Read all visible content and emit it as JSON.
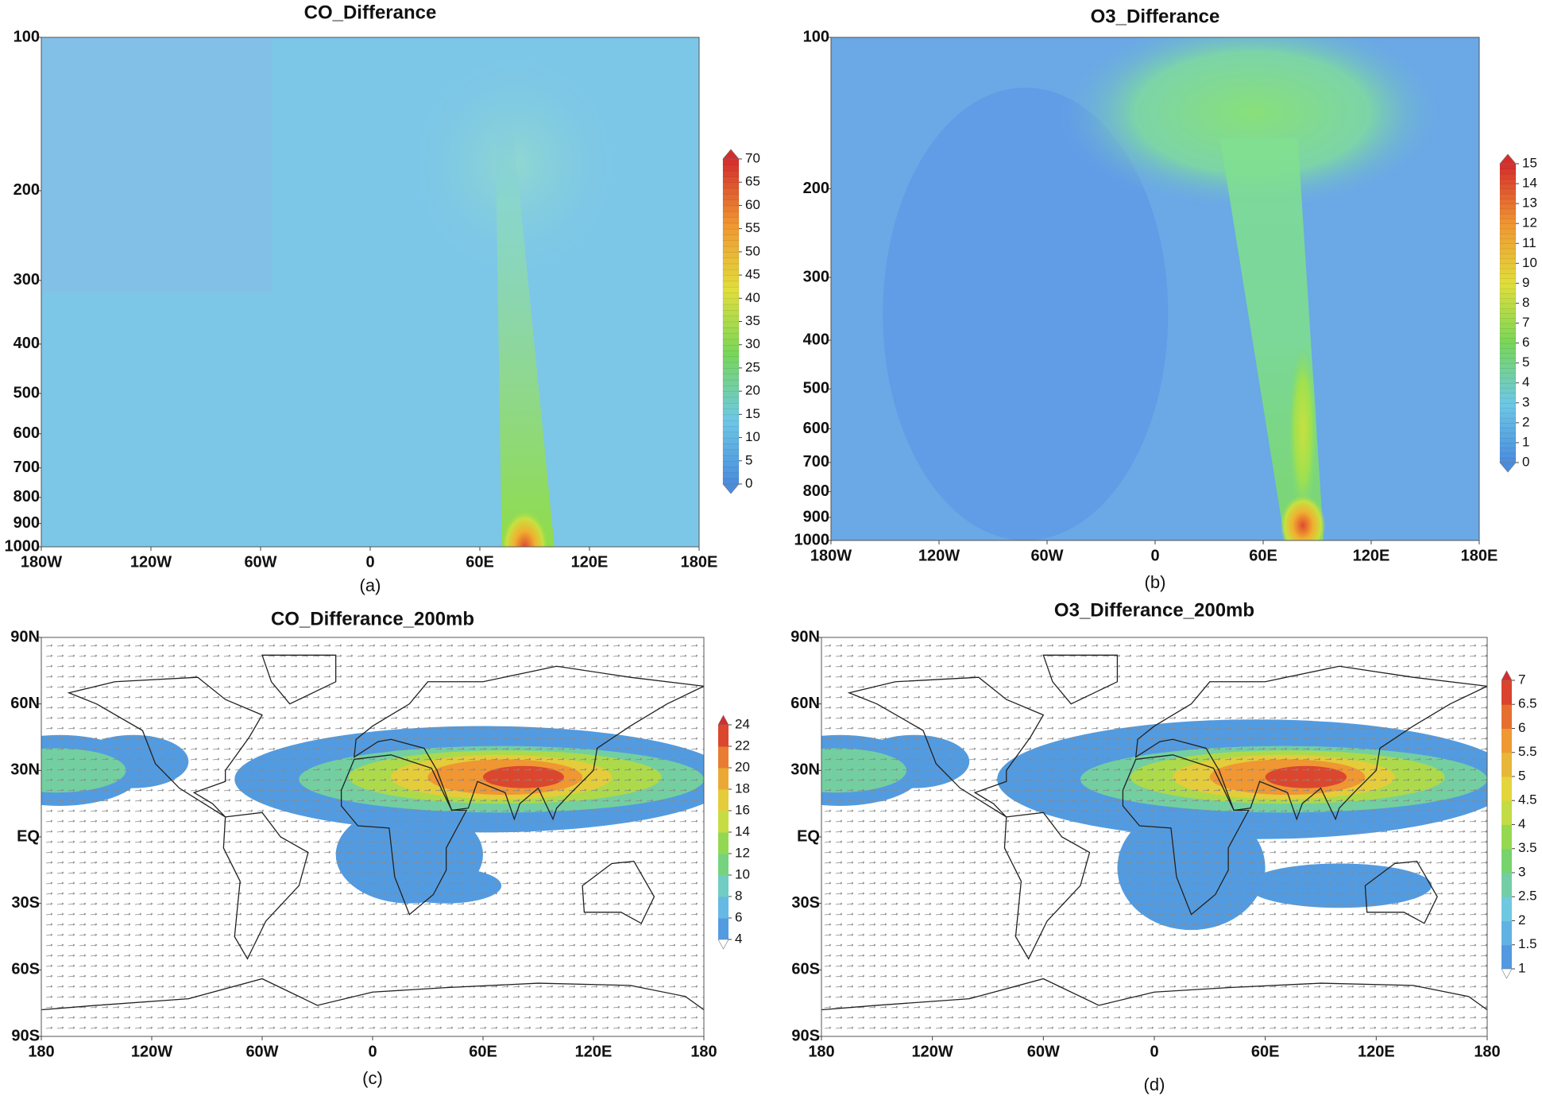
{
  "chart_data": [
    {
      "type": "contour",
      "title": "CO_Differance",
      "caption": "(a)",
      "log_y": true,
      "xlim": [
        -180,
        180
      ],
      "xticks": [
        {
          "value": -180,
          "label": "180W"
        },
        {
          "value": -120,
          "label": "120W"
        },
        {
          "value": -60,
          "label": "60W"
        },
        0,
        {
          "value": 60,
          "label": "60E"
        },
        {
          "value": 120,
          "label": "120E"
        },
        {
          "value": 180,
          "label": "180E"
        }
      ],
      "ylim": [
        1000,
        100
      ],
      "yticks": [
        100,
        200,
        300,
        400,
        500,
        600,
        700,
        800,
        900,
        1000
      ],
      "colorbar_ticks": [
        0,
        5,
        10,
        15,
        20,
        25,
        30,
        35,
        40,
        45,
        50,
        55,
        60,
        65,
        70
      ]
    },
    {
      "type": "contour",
      "title": "O3_Differance",
      "caption": "(b)",
      "log_y": true,
      "xlim": [
        -180,
        180
      ],
      "xticks": [
        {
          "value": -180,
          "label": "180W"
        },
        {
          "value": -120,
          "label": "120W"
        },
        {
          "value": -60,
          "label": "60W"
        },
        0,
        {
          "value": 60,
          "label": "60E"
        },
        {
          "value": 120,
          "label": "120E"
        },
        {
          "value": 180,
          "label": "180E"
        }
      ],
      "ylim": [
        1000,
        100
      ],
      "yticks": [
        100,
        200,
        300,
        400,
        500,
        600,
        700,
        800,
        900,
        1000
      ],
      "colorbar_ticks": [
        0,
        1,
        2,
        3,
        4,
        5,
        6,
        7,
        8,
        9,
        10,
        11,
        12,
        13,
        14,
        15
      ]
    },
    {
      "type": "map",
      "title": "CO_Differance_200mb",
      "caption": "(c)",
      "log_y": false,
      "xlim": [
        -180,
        180
      ],
      "xticks": [
        {
          "value": -180,
          "label": "180"
        },
        {
          "value": -120,
          "label": "120W"
        },
        {
          "value": -60,
          "label": "60W"
        },
        0,
        {
          "value": 60,
          "label": "60E"
        },
        {
          "value": 120,
          "label": "120E"
        },
        180
      ],
      "ylim": [
        -90,
        90
      ],
      "yticks": [
        {
          "value": 90,
          "label": "90N"
        },
        {
          "value": 60,
          "label": "60N"
        },
        {
          "value": 30,
          "label": "30N"
        },
        {
          "value": 0,
          "label": "EQ"
        },
        {
          "value": -30,
          "label": "30S"
        },
        {
          "value": -60,
          "label": "60S"
        },
        {
          "value": -90,
          "label": "90S"
        }
      ],
      "colorbar_ticks": [
        4,
        6,
        8,
        10,
        12,
        14,
        16,
        18,
        20,
        22,
        24
      ]
    },
    {
      "type": "map",
      "title": "O3_Differance_200mb",
      "caption": "(d)",
      "log_y": false,
      "xlim": [
        -180,
        180
      ],
      "xticks": [
        {
          "value": -180,
          "label": "180"
        },
        {
          "value": -120,
          "label": "120W"
        },
        {
          "value": -60,
          "label": "60W"
        },
        0,
        {
          "value": 60,
          "label": "60E"
        },
        {
          "value": 120,
          "label": "120E"
        },
        180
      ],
      "ylim": [
        -90,
        90
      ],
      "yticks": [
        {
          "value": 90,
          "label": "90N"
        },
        {
          "value": 60,
          "label": "60N"
        },
        {
          "value": 30,
          "label": "30N"
        },
        {
          "value": 0,
          "label": "EQ"
        },
        {
          "value": -30,
          "label": "30S"
        },
        {
          "value": -60,
          "label": "60S"
        },
        {
          "value": -90,
          "label": "90S"
        }
      ],
      "colorbar_ticks": [
        1,
        1.5,
        2,
        2.5,
        3,
        3.5,
        4,
        4.5,
        5,
        5.5,
        6,
        6.5,
        7
      ]
    }
  ]
}
